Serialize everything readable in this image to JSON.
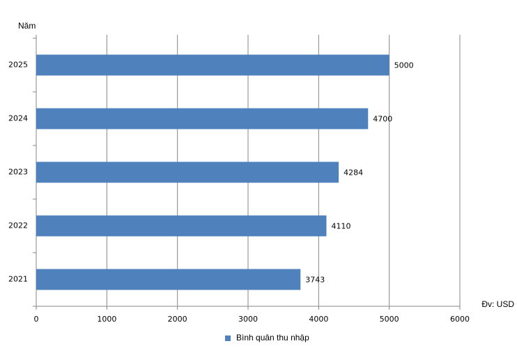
{
  "chart_data": {
    "type": "bar",
    "orientation": "horizontal",
    "y_label": "Năm",
    "x_label": "Đv: USD",
    "categories": [
      "2025",
      "2024",
      "2023",
      "2022",
      "2021"
    ],
    "series": [
      {
        "name": "Bình quân thu nhập",
        "color": "#4f81bd",
        "values": [
          5000,
          4700,
          4284,
          4110,
          3743
        ]
      }
    ],
    "xlim": [
      0,
      6000
    ],
    "xticks": [
      0,
      1000,
      2000,
      3000,
      4000,
      5000,
      6000
    ],
    "grid": true
  }
}
